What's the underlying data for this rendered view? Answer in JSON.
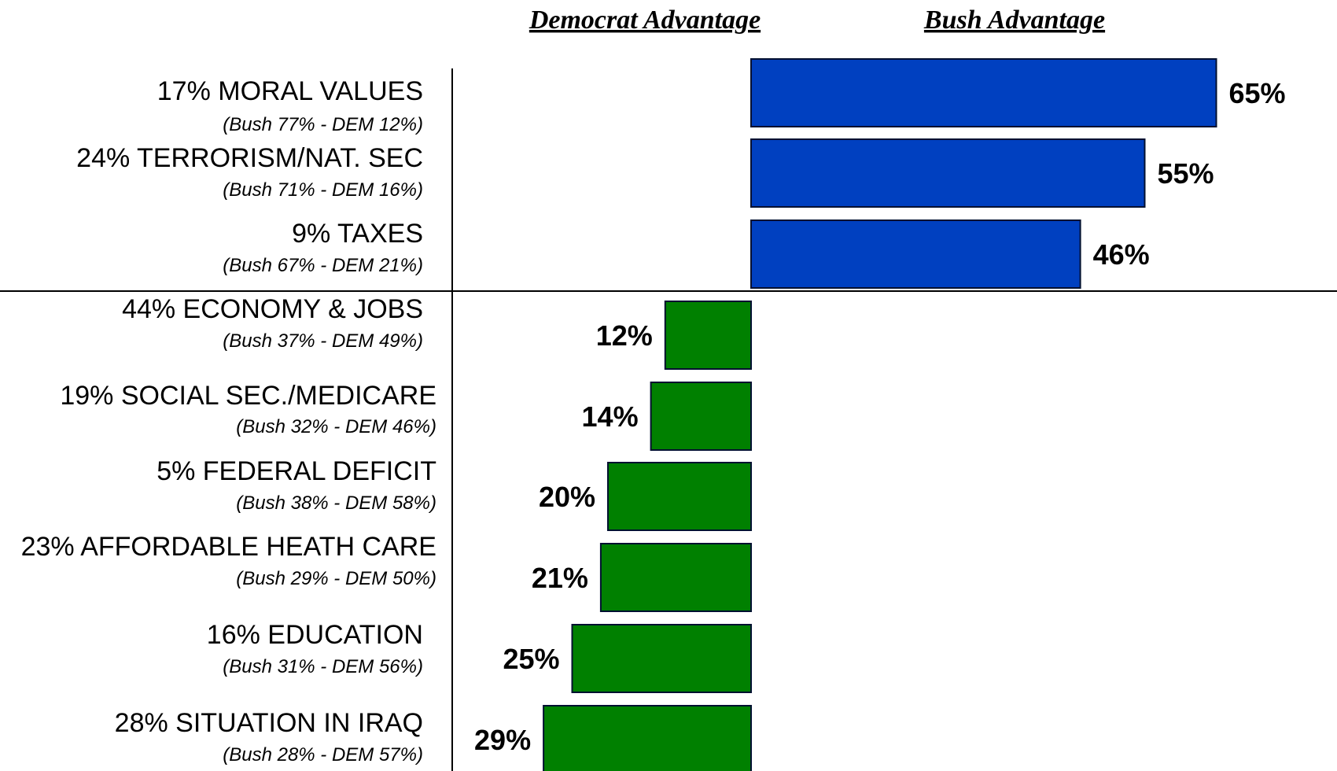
{
  "chart_data": {
    "type": "bar",
    "orientation": "horizontal-diverging",
    "headers": {
      "left": "Democrat Advantage",
      "right": "Bush Advantage"
    },
    "xlim": [
      -29,
      65
    ],
    "colors": {
      "bush": "#0040C0",
      "dem": "#008000",
      "border": "#001030",
      "axis": "#000000"
    },
    "categories": [
      {
        "label": "17% MORAL VALUES",
        "sub": "(Bush 77% - DEM 12%)",
        "value": 65,
        "value_label": "65%",
        "side": "bush"
      },
      {
        "label": "24% TERRORISM/NAT. SEC",
        "sub": "(Bush 71% - DEM 16%)",
        "value": 55,
        "value_label": "55%",
        "side": "bush"
      },
      {
        "label": "9% TAXES",
        "sub": "(Bush 67% - DEM 21%)",
        "value": 46,
        "value_label": "46%",
        "side": "bush"
      },
      {
        "label": "44% ECONOMY & JOBS",
        "sub": "(Bush 37% - DEM 49%)",
        "value": 12,
        "value_label": "12%",
        "side": "dem"
      },
      {
        "label": "19% SOCIAL SEC./MEDICARE",
        "sub": "(Bush 32% - DEM 46%)",
        "value": 14,
        "value_label": "14%",
        "side": "dem"
      },
      {
        "label": "5% FEDERAL DEFICIT",
        "sub": "(Bush 38% - DEM 58%)",
        "value": 20,
        "value_label": "20%",
        "side": "dem"
      },
      {
        "label": "23% AFFORDABLE HEATH CARE",
        "sub": "(Bush 29% - DEM 50%)",
        "value": 21,
        "value_label": "21%",
        "side": "dem"
      },
      {
        "label": "16% EDUCATION",
        "sub": "(Bush 31% - DEM 56%)",
        "value": 25,
        "value_label": "25%",
        "side": "dem"
      },
      {
        "label": "28% SITUATION IN IRAQ",
        "sub": "(Bush 28% - DEM 57%)",
        "value": 29,
        "value_label": "29%",
        "side": "dem"
      }
    ]
  }
}
